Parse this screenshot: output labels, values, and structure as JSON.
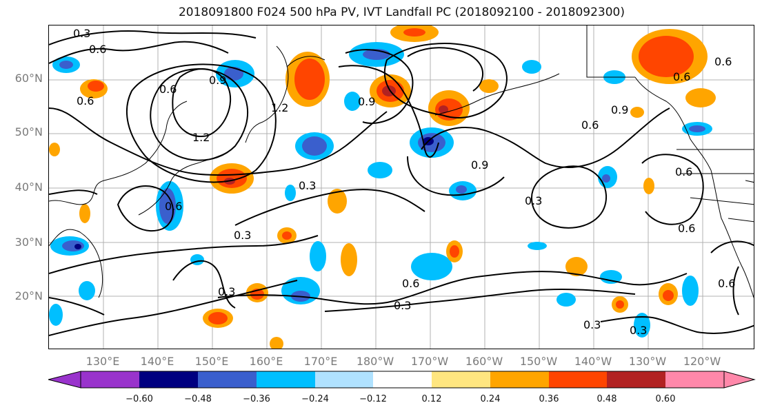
{
  "title": "2018091800 F024 500 hPa PV, IVT Landfall PC (2018092100 - 2018092300)",
  "map": {
    "lat_labels": [
      "60°N",
      "50°N",
      "40°N",
      "30°N",
      "20°N"
    ],
    "lon_labels": [
      "130°E",
      "140°E",
      "150°E",
      "160°E",
      "170°E",
      "180°W",
      "170°W",
      "160°W",
      "150°W",
      "140°W",
      "130°W",
      "120°W"
    ],
    "contour_labels": [
      "0.3",
      "0.6",
      "0.6",
      "0.9",
      "1.2",
      "1.2",
      "0.9",
      "0.9",
      "0.6",
      "0.9",
      "0.6",
      "0.6",
      "0.3",
      "0.3",
      "0.6",
      "0.3",
      "0.3",
      "0.6",
      "0.3",
      "0.3",
      "0.6",
      "0.6",
      "0.3",
      "0.6",
      "0.6"
    ],
    "colors": {
      "land_line": "#000000",
      "grid": "#b0b0b0",
      "contour": "#000000"
    }
  },
  "colorbar": {
    "tick_labels": [
      "−0.60",
      "−0.48",
      "−0.36",
      "−0.24",
      "−0.12",
      "0.12",
      "0.24",
      "0.36",
      "0.48",
      "0.60"
    ],
    "colors": [
      "#9933cc",
      "#000080",
      "#3a5fcd",
      "#00bfff",
      "#b0e2ff",
      "#ffffff",
      "#ffe680",
      "#ffa500",
      "#ff4500",
      "#b22222",
      "#ff88aa"
    ]
  }
}
